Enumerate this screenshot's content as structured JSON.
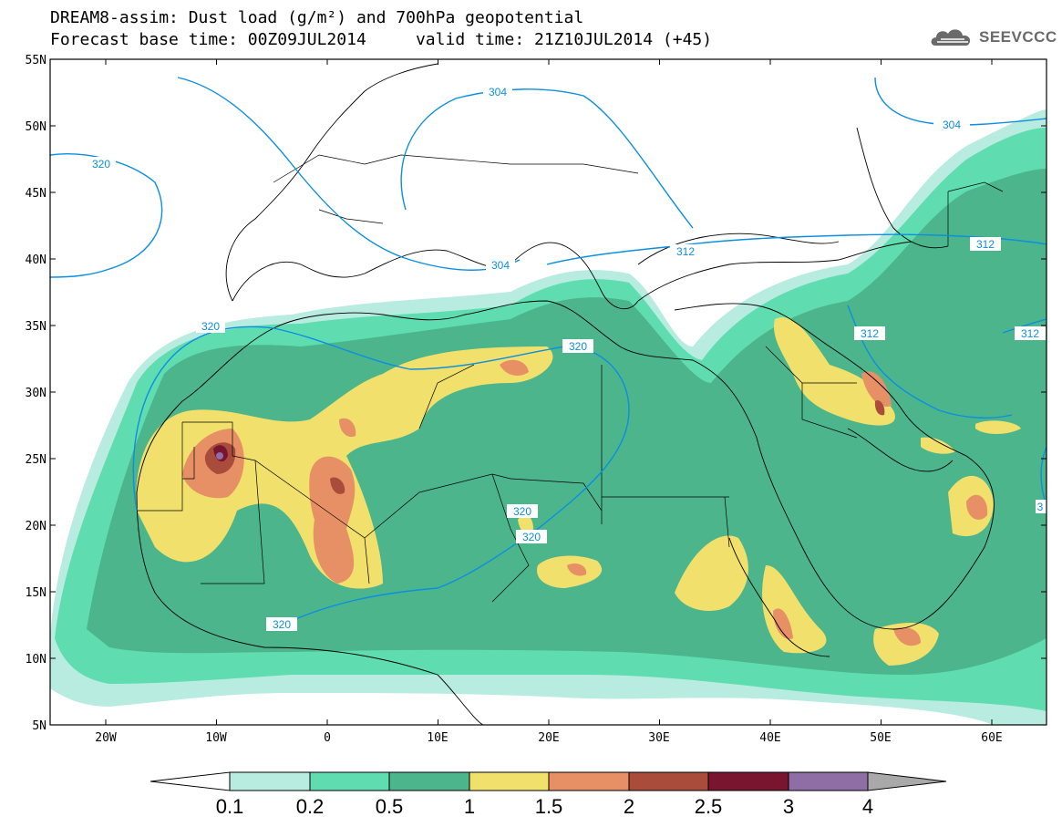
{
  "title": {
    "line1": "DREAM8-assim: Dust load (g/m²) and 700hPa geopotential",
    "line2": "Forecast base time: 00Z09JUL2014     valid time: 21Z10JUL2014 (+45)"
  },
  "logo": {
    "text": "SEEVCCC",
    "icon": "cloud-icon"
  },
  "colors": {
    "c01": "#b8ece0",
    "c02": "#5fddb0",
    "c05": "#4cb58c",
    "c1": "#f1e06c",
    "c15": "#e79066",
    "c2": "#aa4c3c",
    "c25": "#7a1530",
    "c3": "#8e6ea4",
    "c4": "#a9a9a9",
    "contour": "#0c8fe0",
    "coast": "#000000"
  },
  "map": {
    "lat_ticks": [
      "55N",
      "50N",
      "45N",
      "40N",
      "35N",
      "30N",
      "25N",
      "20N",
      "15N",
      "10N",
      "5N"
    ],
    "lon_ticks": [
      "20W",
      "10W",
      "0",
      "10E",
      "20E",
      "30E",
      "40E",
      "50E",
      "60E"
    ],
    "lon_range": [
      -25,
      65
    ],
    "lat_range": [
      5,
      55
    ],
    "contour_labels": [
      {
        "text": "304"
      },
      {
        "text": "304"
      },
      {
        "text": "304"
      },
      {
        "text": "320"
      },
      {
        "text": "320"
      },
      {
        "text": "320"
      },
      {
        "text": "320"
      },
      {
        "text": "320"
      },
      {
        "text": "320"
      },
      {
        "text": "312"
      },
      {
        "text": "312"
      },
      {
        "text": "312"
      },
      {
        "text": "312"
      },
      {
        "text": "3"
      }
    ]
  },
  "colorbar": {
    "levels": [
      "0.1",
      "0.2",
      "0.5",
      "1",
      "1.5",
      "2",
      "2.5",
      "3",
      "4"
    ]
  }
}
